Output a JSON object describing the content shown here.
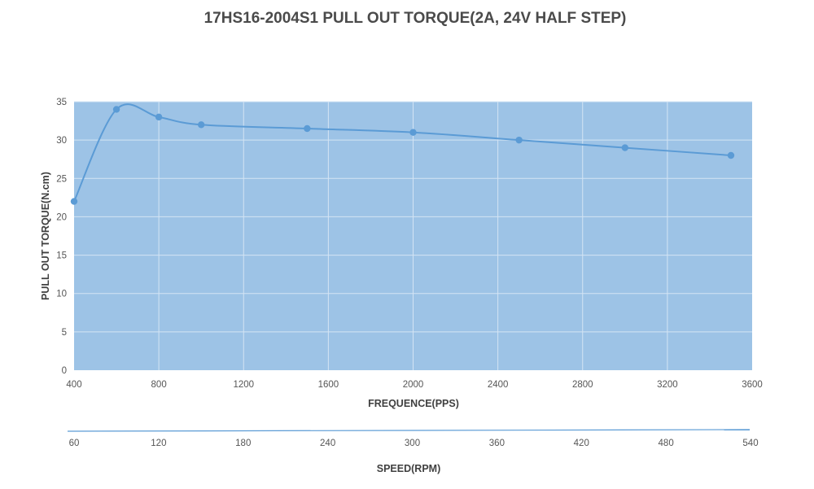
{
  "chart_data": {
    "type": "line",
    "title": "17HS16-2004S1 PULL OUT TORQUE(2A, 24V HALF STEP)",
    "xlabel": "FREQUENCE(PPS)",
    "ylabel": "PULL OUT TORQUE(N.cm)",
    "secondary_xlabel": "SPEED(RPM)",
    "xlim": [
      400,
      3600
    ],
    "ylim": [
      0,
      35
    ],
    "x_ticks": [
      400,
      800,
      1200,
      1600,
      2000,
      2400,
      2800,
      3200,
      3600
    ],
    "y_ticks": [
      0,
      5,
      10,
      15,
      20,
      25,
      30,
      35
    ],
    "secondary_x_ticks": [
      60,
      120,
      180,
      240,
      300,
      360,
      420,
      480,
      540
    ],
    "grid": true,
    "series": [
      {
        "name": "Pull out torque",
        "x": [
          400,
          600,
          800,
          1000,
          1500,
          2000,
          2500,
          3000,
          3500
        ],
        "y": [
          22,
          34,
          33,
          32,
          31.5,
          31,
          30,
          29,
          28
        ]
      }
    ],
    "colors": {
      "plot_background": "#9dc3e6",
      "grid": "#d4e4f4",
      "series": "#5b9bd5",
      "secondary_axis_line": "#5b9bd5",
      "text": "#555555"
    }
  }
}
